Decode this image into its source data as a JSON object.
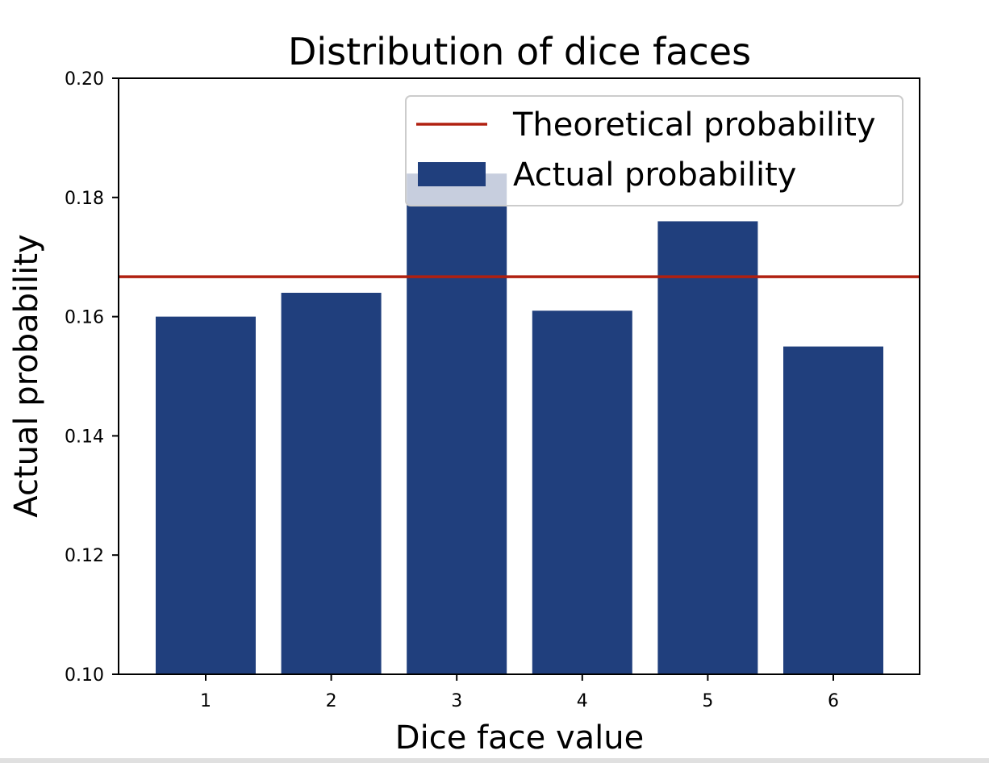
{
  "chart_data": {
    "type": "bar",
    "title": "Distribution of dice faces",
    "xlabel": "Dice face value",
    "ylabel": "Actual probability",
    "categories": [
      "1",
      "2",
      "3",
      "4",
      "5",
      "6"
    ],
    "series": [
      {
        "name": "Actual probability",
        "values": [
          0.16,
          0.164,
          0.184,
          0.161,
          0.176,
          0.155
        ],
        "color": "#203f7d"
      }
    ],
    "reference_line": {
      "name": "Theoretical probability",
      "value": 0.1667,
      "color": "#b02010"
    },
    "ylim": [
      0.1,
      0.2
    ],
    "yticks": [
      "0.10",
      "0.12",
      "0.14",
      "0.16",
      "0.18",
      "0.20"
    ],
    "grid": false,
    "legend_position": "top-right"
  }
}
